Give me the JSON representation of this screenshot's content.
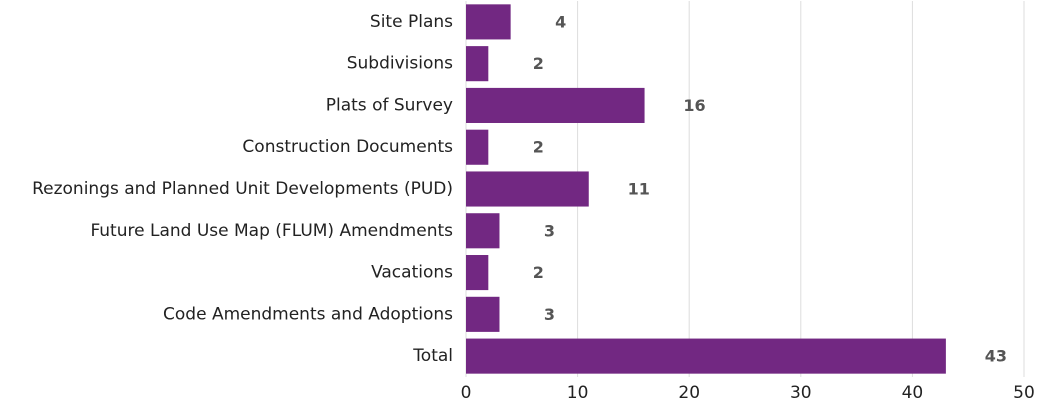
{
  "chart_data": {
    "type": "hbar",
    "categories": [
      "Site Plans",
      "Subdivisions",
      "Plats of Survey",
      "Construction Documents",
      "Rezonings and Planned Unit Developments (PUD)",
      "Future Land Use Map (FLUM) Amendments",
      "Vacations",
      "Code Amendments and Adoptions",
      "Total"
    ],
    "values": [
      4,
      2,
      16,
      2,
      11,
      3,
      2,
      3,
      43
    ],
    "color": "#722882",
    "xlim": [
      0,
      50
    ],
    "xticks": [
      0,
      10,
      20,
      30,
      40,
      50
    ],
    "grid": true
  }
}
